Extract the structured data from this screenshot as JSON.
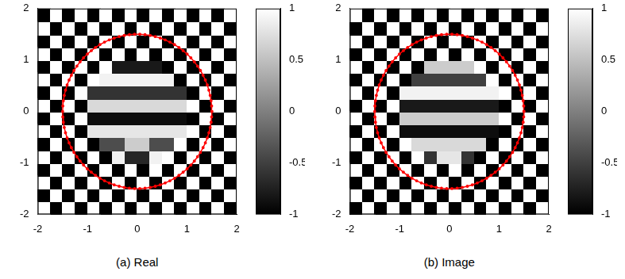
{
  "chart_data": [
    {
      "type": "heatmap",
      "title": "(a) Real",
      "x": [
        -1.875,
        -1.625,
        -1.375,
        -1.125,
        -0.875,
        -0.625,
        -0.375,
        -0.125,
        0.125,
        0.375,
        0.625,
        0.875,
        1.125,
        1.375,
        1.625,
        1.875
      ],
      "y": [
        -1.875,
        -1.625,
        -1.375,
        -1.125,
        -0.875,
        -0.625,
        -0.375,
        -0.125,
        0.125,
        0.375,
        0.625,
        0.875,
        1.125,
        1.375,
        1.625,
        1.875
      ],
      "cells": [
        [
          1,
          -1,
          1,
          -1,
          1,
          -1,
          1,
          -1,
          1,
          -1,
          1,
          -1,
          1,
          -1,
          1,
          -1
        ],
        [
          -1,
          1,
          -1,
          1,
          -1,
          1,
          -1,
          1,
          -1,
          1,
          -1,
          1,
          -1,
          1,
          -1,
          1
        ],
        [
          1,
          -1,
          1,
          -1,
          1,
          -1,
          1,
          -1,
          1,
          -1,
          1,
          -1,
          1,
          -1,
          1,
          -1
        ],
        [
          -1,
          1,
          -1,
          1,
          -1,
          1,
          -1,
          1,
          -1,
          1,
          -1,
          1,
          -1,
          1,
          -1,
          1
        ],
        [
          1,
          -1,
          1,
          -1,
          1,
          -1,
          0.9,
          -0.7,
          -0.7,
          0.9,
          1,
          -1,
          1,
          -1,
          1,
          -1
        ],
        [
          -1,
          1,
          -1,
          1,
          -1,
          -0.4,
          -0.4,
          0.6,
          0.6,
          -0.4,
          -0.4,
          1,
          -1,
          1,
          -1,
          1
        ],
        [
          1,
          -1,
          1,
          -1,
          0.8,
          0.8,
          0.8,
          0.8,
          0.8,
          0.8,
          0.8,
          0.8,
          1,
          -1,
          1,
          -1
        ],
        [
          -1,
          1,
          -1,
          1,
          -0.9,
          -0.9,
          -0.9,
          -0.9,
          -0.9,
          -0.9,
          -0.9,
          -0.9,
          -1,
          1,
          -1,
          1
        ],
        [
          1,
          -1,
          1,
          -1,
          0.7,
          0.7,
          0.7,
          0.7,
          0.7,
          0.7,
          0.7,
          0.7,
          1,
          -1,
          1,
          -1
        ],
        [
          -1,
          1,
          -1,
          1,
          -0.6,
          -0.6,
          -0.6,
          -0.6,
          -0.6,
          -0.6,
          -0.6,
          -0.6,
          -1,
          1,
          -1,
          1
        ],
        [
          1,
          -1,
          1,
          -1,
          1,
          0.9,
          0.9,
          0.9,
          0.9,
          0.9,
          0.9,
          -1,
          1,
          -1,
          1,
          -1
        ],
        [
          -1,
          1,
          -1,
          1,
          -1,
          1,
          -0.8,
          -0.8,
          -0.8,
          -0.8,
          -1,
          1,
          -1,
          1,
          -1,
          1
        ],
        [
          1,
          -1,
          1,
          -1,
          1,
          -1,
          1,
          -1,
          1,
          -1,
          1,
          -1,
          1,
          -1,
          1,
          -1
        ],
        [
          -1,
          1,
          -1,
          1,
          -1,
          1,
          -1,
          1,
          -1,
          1,
          -1,
          1,
          -1,
          1,
          -1,
          1
        ],
        [
          1,
          -1,
          1,
          -1,
          1,
          -1,
          1,
          -1,
          1,
          -1,
          1,
          -1,
          1,
          -1,
          1,
          -1
        ],
        [
          -1,
          1,
          -1,
          1,
          -1,
          1,
          -1,
          1,
          -1,
          1,
          -1,
          1,
          -1,
          1,
          -1,
          1
        ]
      ],
      "xlim": [
        -2,
        2
      ],
      "ylim": [
        -2,
        2
      ],
      "xticks": [
        -2,
        -1,
        0,
        1,
        2
      ],
      "yticks": [
        -2,
        -1,
        0,
        1,
        2
      ],
      "colorbar": {
        "lim": [
          -1,
          1
        ],
        "ticks": [
          -1,
          -0.5,
          0,
          0.5,
          1
        ]
      },
      "circle": {
        "center": [
          0,
          0
        ],
        "radius": 1.5,
        "color": "#ff0000"
      },
      "grid": false
    },
    {
      "type": "heatmap",
      "title": "(b) Image",
      "x": [
        -1.875,
        -1.625,
        -1.375,
        -1.125,
        -0.875,
        -0.625,
        -0.375,
        -0.125,
        0.125,
        0.375,
        0.625,
        0.875,
        1.125,
        1.375,
        1.625,
        1.875
      ],
      "y": [
        -1.875,
        -1.625,
        -1.375,
        -1.125,
        -0.875,
        -0.625,
        -0.375,
        -0.125,
        0.125,
        0.375,
        0.625,
        0.875,
        1.125,
        1.375,
        1.625,
        1.875
      ],
      "cells": [
        [
          -1,
          1,
          -1,
          1,
          -1,
          1,
          -1,
          1,
          -1,
          1,
          -1,
          1,
          -1,
          1,
          -1,
          1
        ],
        [
          1,
          -1,
          1,
          -1,
          1,
          -1,
          1,
          -1,
          1,
          -1,
          1,
          -1,
          1,
          -1,
          1,
          -1
        ],
        [
          -1,
          1,
          -1,
          1,
          -1,
          1,
          -1,
          1,
          -1,
          1,
          -1,
          1,
          -1,
          1,
          -1,
          1
        ],
        [
          1,
          -1,
          1,
          -1,
          1,
          -1,
          1,
          -1,
          1,
          -1,
          1,
          -1,
          1,
          -1,
          1,
          -1
        ],
        [
          -1,
          1,
          -1,
          1,
          -1,
          1,
          -0.6,
          0.8,
          0.8,
          -0.6,
          -1,
          1,
          -1,
          1,
          -1,
          1
        ],
        [
          1,
          -1,
          1,
          -1,
          1,
          0.7,
          0.7,
          0.7,
          0.7,
          0.7,
          0.7,
          -1,
          1,
          -1,
          1,
          -1
        ],
        [
          -1,
          1,
          -1,
          1,
          -0.9,
          -0.9,
          -0.9,
          -0.9,
          -0.9,
          -0.9,
          -0.9,
          -0.9,
          -1,
          1,
          -1,
          1
        ],
        [
          1,
          -1,
          1,
          -1,
          0.6,
          0.6,
          0.6,
          0.6,
          0.6,
          0.6,
          0.6,
          0.6,
          1,
          -1,
          1,
          -1
        ],
        [
          -1,
          1,
          -1,
          1,
          -0.8,
          -0.8,
          -0.8,
          -0.8,
          -0.8,
          -0.8,
          -0.8,
          -0.8,
          -1,
          1,
          -1,
          1
        ],
        [
          1,
          -1,
          1,
          -1,
          0.9,
          0.9,
          0.9,
          0.9,
          0.9,
          0.9,
          0.9,
          0.9,
          1,
          -1,
          1,
          -1
        ],
        [
          -1,
          1,
          -1,
          1,
          -1,
          -0.5,
          -0.5,
          -0.5,
          -0.5,
          -0.5,
          -0.5,
          1,
          -1,
          1,
          -1,
          1
        ],
        [
          1,
          -1,
          1,
          -1,
          1,
          -1,
          0.6,
          0.6,
          0.6,
          0.6,
          1,
          -1,
          1,
          -1,
          1,
          -1
        ],
        [
          -1,
          1,
          -1,
          1,
          -1,
          1,
          -1,
          1,
          -1,
          1,
          -1,
          1,
          -1,
          1,
          -1,
          1
        ],
        [
          1,
          -1,
          1,
          -1,
          1,
          -1,
          1,
          -1,
          1,
          -1,
          1,
          -1,
          1,
          -1,
          1,
          -1
        ],
        [
          -1,
          1,
          -1,
          1,
          -1,
          1,
          -1,
          1,
          -1,
          1,
          -1,
          1,
          -1,
          1,
          -1,
          1
        ],
        [
          1,
          -1,
          1,
          -1,
          1,
          -1,
          1,
          -1,
          1,
          -1,
          1,
          -1,
          1,
          -1,
          1,
          -1
        ]
      ],
      "xlim": [
        -2,
        2
      ],
      "ylim": [
        -2,
        2
      ],
      "xticks": [
        -2,
        -1,
        0,
        1,
        2
      ],
      "yticks": [
        -2,
        -1,
        0,
        1,
        2
      ],
      "colorbar": {
        "lim": [
          -1,
          1
        ],
        "ticks": [
          -1,
          -0.5,
          0,
          0.5,
          1
        ]
      },
      "circle": {
        "center": [
          0,
          0
        ],
        "radius": 1.5,
        "color": "#ff0000"
      },
      "grid": false
    }
  ]
}
